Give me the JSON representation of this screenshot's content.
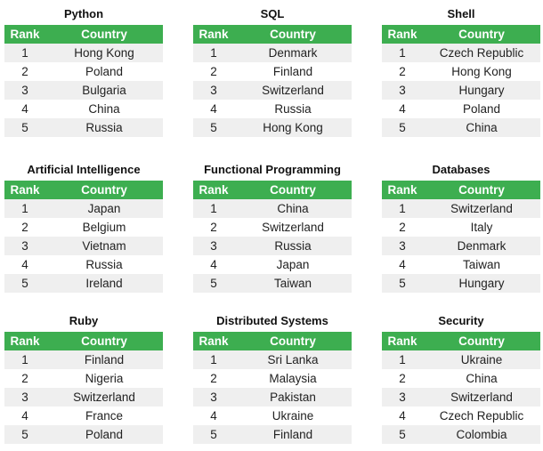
{
  "colors": {
    "header_bg": "#3dae50",
    "stripe_bg": "#efefef"
  },
  "header": {
    "rank": "Rank",
    "country": "Country"
  },
  "tables": [
    {
      "title": "Python",
      "rows": [
        [
          "1",
          "Hong Kong"
        ],
        [
          "2",
          "Poland"
        ],
        [
          "3",
          "Bulgaria"
        ],
        [
          "4",
          "China"
        ],
        [
          "5",
          "Russia"
        ]
      ]
    },
    {
      "title": "SQL",
      "rows": [
        [
          "1",
          "Denmark"
        ],
        [
          "2",
          "Finland"
        ],
        [
          "3",
          "Switzerland"
        ],
        [
          "4",
          "Russia"
        ],
        [
          "5",
          "Hong Kong"
        ]
      ]
    },
    {
      "title": "Shell",
      "rows": [
        [
          "1",
          "Czech Republic"
        ],
        [
          "2",
          "Hong Kong"
        ],
        [
          "3",
          "Hungary"
        ],
        [
          "4",
          "Poland"
        ],
        [
          "5",
          "China"
        ]
      ]
    },
    {
      "title": "Artificial Intelligence",
      "rows": [
        [
          "1",
          "Japan"
        ],
        [
          "2",
          "Belgium"
        ],
        [
          "3",
          "Vietnam"
        ],
        [
          "4",
          "Russia"
        ],
        [
          "5",
          "Ireland"
        ]
      ]
    },
    {
      "title": "Functional Programming",
      "rows": [
        [
          "1",
          "China"
        ],
        [
          "2",
          "Switzerland"
        ],
        [
          "3",
          "Russia"
        ],
        [
          "4",
          "Japan"
        ],
        [
          "5",
          "Taiwan"
        ]
      ]
    },
    {
      "title": "Databases",
      "rows": [
        [
          "1",
          "Switzerland"
        ],
        [
          "2",
          "Italy"
        ],
        [
          "3",
          "Denmark"
        ],
        [
          "4",
          "Taiwan"
        ],
        [
          "5",
          "Hungary"
        ]
      ]
    },
    {
      "title": "Ruby",
      "rows": [
        [
          "1",
          "Finland"
        ],
        [
          "2",
          "Nigeria"
        ],
        [
          "3",
          "Switzerland"
        ],
        [
          "4",
          "France"
        ],
        [
          "5",
          "Poland"
        ]
      ]
    },
    {
      "title": "Distributed Systems",
      "rows": [
        [
          "1",
          "Sri Lanka"
        ],
        [
          "2",
          "Malaysia"
        ],
        [
          "3",
          "Pakistan"
        ],
        [
          "4",
          "Ukraine"
        ],
        [
          "5",
          "Finland"
        ]
      ]
    },
    {
      "title": "Security",
      "rows": [
        [
          "1",
          "Ukraine"
        ],
        [
          "2",
          "China"
        ],
        [
          "3",
          "Switzerland"
        ],
        [
          "4",
          "Czech Republic"
        ],
        [
          "5",
          "Colombia"
        ]
      ]
    }
  ]
}
